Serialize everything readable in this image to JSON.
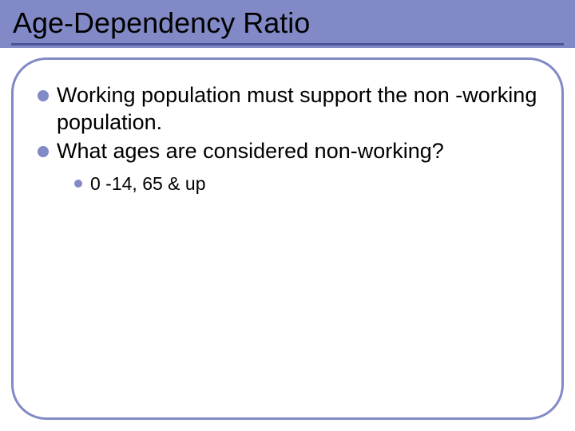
{
  "slide": {
    "title": "Age-Dependency Ratio",
    "bullets": [
      {
        "text": "Working population must support the non -working population."
      },
      {
        "text": "What ages are considered non-working?"
      }
    ],
    "sub_bullets": [
      {
        "text": "0 -14, 65 & up"
      }
    ]
  },
  "style": {
    "band_color": "#8189c6",
    "underline_color": "#4a5599",
    "border_color": "#8189c6",
    "bullet_color": "#8189c6",
    "title_fontsize": 36,
    "body_fontsize": 27,
    "sub_fontsize": 23,
    "border_radius": 44,
    "background_color": "#ffffff",
    "text_color": "#000000"
  }
}
